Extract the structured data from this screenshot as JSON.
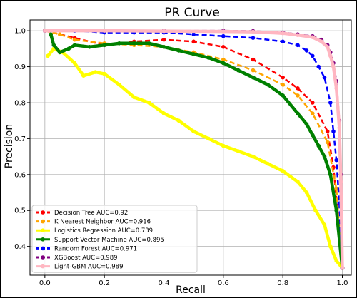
{
  "chart_data": {
    "type": "line",
    "title": "PR Curve",
    "xlabel": "Recall",
    "ylabel": "Precision",
    "xlim": [
      -0.05,
      1.03
    ],
    "ylim": [
      0.32,
      1.03
    ],
    "xticks": [
      "0.0",
      "0.2",
      "0.4",
      "0.6",
      "0.8",
      "1.0"
    ],
    "yticks": [
      "0.4",
      "0.5",
      "0.6",
      "0.7",
      "0.8",
      "0.9",
      "1.0"
    ],
    "grid": true,
    "legend_position": "bottom-left",
    "series": [
      {
        "name": "Decision Tree AUC=0.92",
        "color": "#ff0000",
        "style": "dashed",
        "points": [
          [
            0,
            1.0
          ],
          [
            0.1,
            0.98
          ],
          [
            0.2,
            0.96
          ],
          [
            0.3,
            0.97
          ],
          [
            0.4,
            0.975
          ],
          [
            0.5,
            0.97
          ],
          [
            0.6,
            0.955
          ],
          [
            0.7,
            0.92
          ],
          [
            0.8,
            0.87
          ],
          [
            0.85,
            0.84
          ],
          [
            0.9,
            0.8
          ],
          [
            0.95,
            0.72
          ],
          [
            0.97,
            0.62
          ],
          [
            0.99,
            0.45
          ],
          [
            1.0,
            0.34
          ]
        ]
      },
      {
        "name": "K Nearest Neighbor AUC=0.916",
        "color": "#ffa500",
        "style": "dashed",
        "points": [
          [
            0,
            1.0
          ],
          [
            0.05,
            0.99
          ],
          [
            0.1,
            0.975
          ],
          [
            0.2,
            0.965
          ],
          [
            0.3,
            0.96
          ],
          [
            0.4,
            0.955
          ],
          [
            0.5,
            0.94
          ],
          [
            0.6,
            0.92
          ],
          [
            0.7,
            0.89
          ],
          [
            0.8,
            0.85
          ],
          [
            0.85,
            0.82
          ],
          [
            0.9,
            0.77
          ],
          [
            0.95,
            0.69
          ],
          [
            0.98,
            0.56
          ],
          [
            1.0,
            0.34
          ]
        ]
      },
      {
        "name": "Logistics Regression AUC=0.739",
        "color": "#ffff00",
        "style": "solid",
        "points": [
          [
            0.01,
            0.93
          ],
          [
            0.03,
            0.95
          ],
          [
            0.06,
            0.94
          ],
          [
            0.1,
            0.91
          ],
          [
            0.13,
            0.875
          ],
          [
            0.17,
            0.885
          ],
          [
            0.2,
            0.88
          ],
          [
            0.25,
            0.85
          ],
          [
            0.3,
            0.815
          ],
          [
            0.35,
            0.8
          ],
          [
            0.4,
            0.77
          ],
          [
            0.45,
            0.75
          ],
          [
            0.5,
            0.72
          ],
          [
            0.55,
            0.7
          ],
          [
            0.6,
            0.68
          ],
          [
            0.65,
            0.665
          ],
          [
            0.7,
            0.65
          ],
          [
            0.75,
            0.63
          ],
          [
            0.8,
            0.61
          ],
          [
            0.85,
            0.58
          ],
          [
            0.88,
            0.55
          ],
          [
            0.91,
            0.5
          ],
          [
            0.94,
            0.46
          ],
          [
            0.96,
            0.4
          ],
          [
            0.98,
            0.36
          ],
          [
            1.0,
            0.34
          ]
        ]
      },
      {
        "name": "Support Vector Machine AUC=0.895",
        "color": "#008000",
        "style": "solid",
        "points": [
          [
            0.02,
            0.99
          ],
          [
            0.03,
            0.96
          ],
          [
            0.05,
            0.94
          ],
          [
            0.08,
            0.95
          ],
          [
            0.1,
            0.96
          ],
          [
            0.15,
            0.955
          ],
          [
            0.2,
            0.96
          ],
          [
            0.25,
            0.965
          ],
          [
            0.3,
            0.965
          ],
          [
            0.35,
            0.965
          ],
          [
            0.4,
            0.955
          ],
          [
            0.45,
            0.945
          ],
          [
            0.5,
            0.935
          ],
          [
            0.55,
            0.925
          ],
          [
            0.6,
            0.91
          ],
          [
            0.65,
            0.89
          ],
          [
            0.7,
            0.87
          ],
          [
            0.75,
            0.85
          ],
          [
            0.8,
            0.82
          ],
          [
            0.85,
            0.77
          ],
          [
            0.88,
            0.74
          ],
          [
            0.9,
            0.71
          ],
          [
            0.92,
            0.68
          ],
          [
            0.94,
            0.65
          ],
          [
            0.96,
            0.6
          ],
          [
            0.98,
            0.5
          ],
          [
            1.0,
            0.34
          ]
        ]
      },
      {
        "name": "Random Forest AUC=0.971",
        "color": "#0000ff",
        "style": "dashed",
        "points": [
          [
            0,
            1.0
          ],
          [
            0.1,
            1.0
          ],
          [
            0.2,
            0.995
          ],
          [
            0.3,
            0.995
          ],
          [
            0.4,
            0.995
          ],
          [
            0.5,
            0.99
          ],
          [
            0.6,
            0.985
          ],
          [
            0.7,
            0.98
          ],
          [
            0.8,
            0.97
          ],
          [
            0.85,
            0.96
          ],
          [
            0.88,
            0.945
          ],
          [
            0.9,
            0.93
          ],
          [
            0.92,
            0.9
          ],
          [
            0.94,
            0.87
          ],
          [
            0.96,
            0.8
          ],
          [
            0.97,
            0.72
          ],
          [
            0.98,
            0.64
          ],
          [
            0.99,
            0.52
          ],
          [
            1.0,
            0.34
          ]
        ]
      },
      {
        "name": "XGBoost AUC=0.989",
        "color": "#800080",
        "style": "dashed",
        "points": [
          [
            0,
            1.0
          ],
          [
            0.2,
            1.0
          ],
          [
            0.4,
            1.0
          ],
          [
            0.6,
            1.0
          ],
          [
            0.7,
            0.999
          ],
          [
            0.8,
            0.995
          ],
          [
            0.85,
            0.99
          ],
          [
            0.9,
            0.985
          ],
          [
            0.93,
            0.975
          ],
          [
            0.95,
            0.96
          ],
          [
            0.96,
            0.94
          ],
          [
            0.97,
            0.91
          ],
          [
            0.98,
            0.86
          ],
          [
            0.99,
            0.75
          ],
          [
            0.995,
            0.6
          ],
          [
            1.0,
            0.34
          ]
        ]
      },
      {
        "name": "Lignt-GBM AUC=0.989",
        "color": "#ffb6c1",
        "style": "solid",
        "points": [
          [
            0,
            1.0
          ],
          [
            0.2,
            1.0
          ],
          [
            0.4,
            0.999
          ],
          [
            0.6,
            0.998
          ],
          [
            0.7,
            0.997
          ],
          [
            0.8,
            0.993
          ],
          [
            0.85,
            0.988
          ],
          [
            0.9,
            0.982
          ],
          [
            0.93,
            0.97
          ],
          [
            0.95,
            0.955
          ],
          [
            0.96,
            0.93
          ],
          [
            0.97,
            0.9
          ],
          [
            0.98,
            0.84
          ],
          [
            0.99,
            0.73
          ],
          [
            0.995,
            0.58
          ],
          [
            1.0,
            0.34
          ]
        ]
      }
    ]
  }
}
